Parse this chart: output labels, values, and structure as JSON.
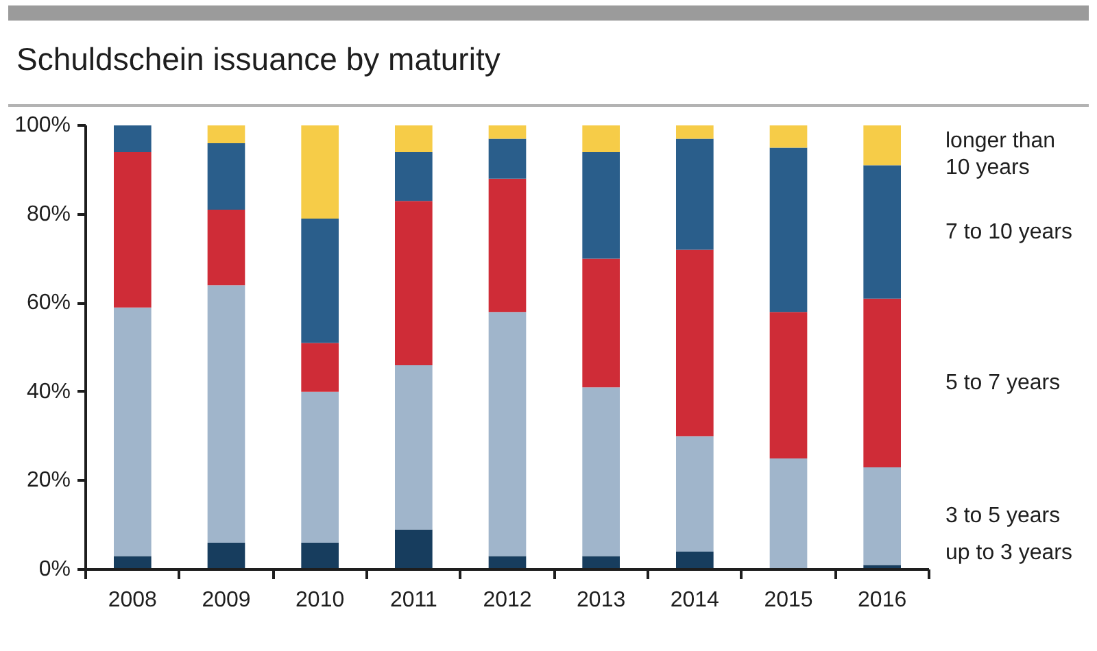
{
  "chart_data": {
    "type": "bar",
    "title": "Schuldschein issuance by maturity",
    "categories": [
      "2008",
      "2009",
      "2010",
      "2011",
      "2012",
      "2013",
      "2014",
      "2015",
      "2016"
    ],
    "stacked": true,
    "series": [
      {
        "name": "up to 3 years",
        "color": "#173d5e",
        "values": [
          3,
          6,
          6,
          9,
          3,
          3,
          4,
          0,
          1
        ]
      },
      {
        "name": "3 to 5 years",
        "color": "#a0b5cb",
        "values": [
          56,
          58,
          34,
          37,
          55,
          38,
          26,
          25,
          22
        ]
      },
      {
        "name": "5 to 7 years",
        "color": "#cf2c37",
        "values": [
          35,
          17,
          11,
          37,
          30,
          29,
          42,
          33,
          38
        ]
      },
      {
        "name": "7 to 10 years",
        "color": "#2a5e8b",
        "values": [
          6,
          15,
          28,
          11,
          9,
          24,
          25,
          37,
          30
        ]
      },
      {
        "name": "longer than 10 years",
        "color": "#f6cc48",
        "values": [
          0,
          4,
          21,
          6,
          3,
          6,
          3,
          5,
          9
        ]
      }
    ],
    "ylim": [
      0,
      100
    ],
    "yticks": [
      {
        "value": 0,
        "label": "0%"
      },
      {
        "value": 20,
        "label": "20%"
      },
      {
        "value": 40,
        "label": "40%"
      },
      {
        "value": 60,
        "label": "60%"
      },
      {
        "value": 80,
        "label": "80%"
      },
      {
        "value": 100,
        "label": "100%"
      }
    ],
    "grid": false
  }
}
